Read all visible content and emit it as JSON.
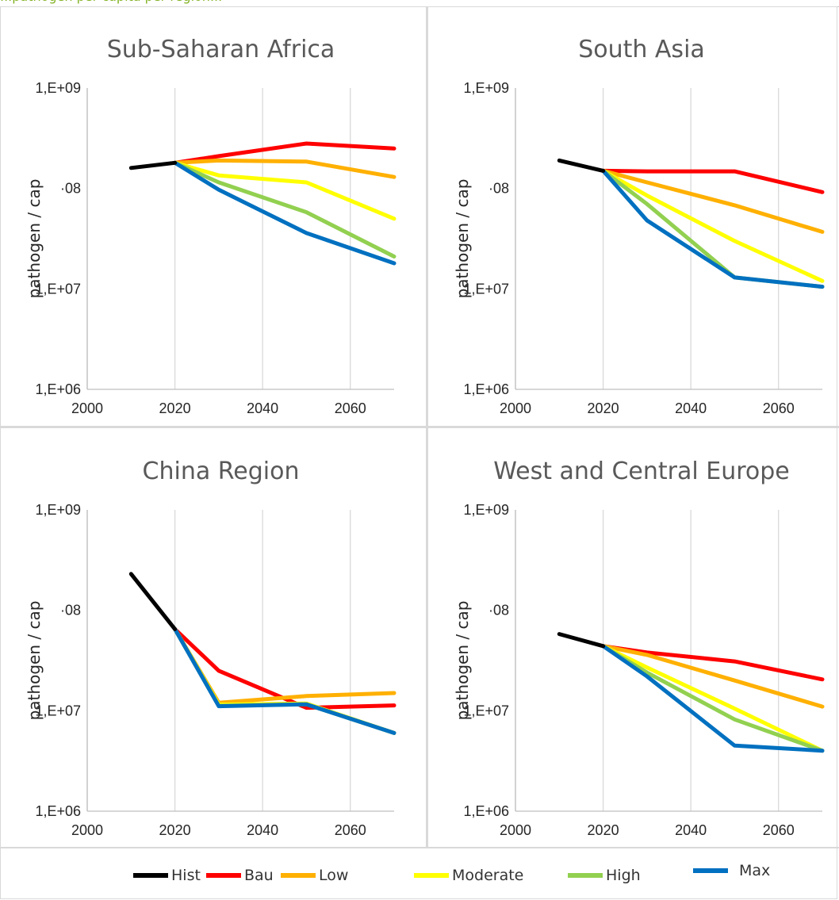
{
  "caption": "...pathogen per capita per region...",
  "legend": [
    {
      "name": "Hist",
      "color": "#000000"
    },
    {
      "name": "Bau",
      "color": "#ff0000"
    },
    {
      "name": "Low",
      "color": "#ffb000"
    },
    {
      "name": "Moderate",
      "color": "#ffff00"
    },
    {
      "name": "High",
      "color": "#92d050"
    },
    {
      "name": "Max",
      "color": "#0070c0"
    }
  ],
  "chart_data": [
    {
      "type": "line",
      "title": "Sub-Saharan Africa",
      "ylabel": "pathogen / cap",
      "yscale": "log",
      "ylim": [
        1000000,
        1000000000
      ],
      "yticks": [
        "1,E+06",
        "1,E+07",
        "·08",
        "1,E+09"
      ],
      "xlim": [
        2000,
        2070
      ],
      "xticks": [
        "2000",
        "2020",
        "2040",
        "2060"
      ],
      "grid": "vertical",
      "series": [
        {
          "name": "Hist",
          "color": "#000000",
          "x": [
            2010,
            2020
          ],
          "y": [
            160000000,
            180000000
          ]
        },
        {
          "name": "Bau",
          "color": "#ff0000",
          "x": [
            2020,
            2030,
            2050,
            2070
          ],
          "y": [
            180000000,
            210000000,
            280000000,
            250000000
          ]
        },
        {
          "name": "Low",
          "color": "#ffb000",
          "x": [
            2020,
            2030,
            2050,
            2070
          ],
          "y": [
            180000000,
            190000000,
            185000000,
            130000000
          ]
        },
        {
          "name": "Moderate",
          "color": "#ffff00",
          "x": [
            2020,
            2030,
            2050,
            2070
          ],
          "y": [
            180000000,
            135000000,
            115000000,
            50000000
          ]
        },
        {
          "name": "High",
          "color": "#92d050",
          "x": [
            2020,
            2030,
            2050,
            2070
          ],
          "y": [
            180000000,
            115000000,
            58000000,
            21000000
          ]
        },
        {
          "name": "Max",
          "color": "#0070c0",
          "x": [
            2020,
            2030,
            2050,
            2070
          ],
          "y": [
            180000000,
            97000000,
            36000000,
            18000000
          ]
        }
      ]
    },
    {
      "type": "line",
      "title": "South Asia",
      "ylabel": "pathogen / cap",
      "yscale": "log",
      "ylim": [
        1000000,
        1000000000
      ],
      "yticks": [
        "1,E+06",
        "1,E+07",
        "·08",
        "1,E+09"
      ],
      "xlim": [
        2000,
        2070
      ],
      "xticks": [
        "2000",
        "2020",
        "2040",
        "2060"
      ],
      "grid": "vertical",
      "series": [
        {
          "name": "Hist",
          "color": "#000000",
          "x": [
            2010,
            2020
          ],
          "y": [
            190000000,
            150000000
          ]
        },
        {
          "name": "Bau",
          "color": "#ff0000",
          "x": [
            2020,
            2030,
            2050,
            2070
          ],
          "y": [
            150000000,
            148000000,
            148000000,
            92000000
          ]
        },
        {
          "name": "Low",
          "color": "#ffb000",
          "x": [
            2020,
            2030,
            2050,
            2070
          ],
          "y": [
            150000000,
            115000000,
            68000000,
            37000000
          ]
        },
        {
          "name": "Moderate",
          "color": "#ffff00",
          "x": [
            2020,
            2030,
            2050,
            2070
          ],
          "y": [
            150000000,
            85000000,
            30000000,
            12000000
          ]
        },
        {
          "name": "High",
          "color": "#92d050",
          "x": [
            2020,
            2030,
            2050,
            2070
          ],
          "y": [
            150000000,
            70000000,
            13000000,
            10500000
          ]
        },
        {
          "name": "Max",
          "color": "#0070c0",
          "x": [
            2020,
            2030,
            2050,
            2070
          ],
          "y": [
            150000000,
            48000000,
            13000000,
            10500000
          ]
        }
      ]
    },
    {
      "type": "line",
      "title": "China Region",
      "ylabel": "pathogen / cap",
      "yscale": "log",
      "ylim": [
        1000000,
        1000000000
      ],
      "yticks": [
        "1,E+06",
        "1,E+07",
        "·08",
        "1,E+09"
      ],
      "xlim": [
        2000,
        2070
      ],
      "xticks": [
        "2000",
        "2020",
        "2040",
        "2060"
      ],
      "grid": "vertical",
      "series": [
        {
          "name": "Hist",
          "color": "#000000",
          "x": [
            2010,
            2020
          ],
          "y": [
            230000000,
            65000000
          ]
        },
        {
          "name": "Bau",
          "color": "#ff0000",
          "x": [
            2020,
            2030,
            2050,
            2070
          ],
          "y": [
            65000000,
            25000000,
            10700000,
            11300000
          ]
        },
        {
          "name": "Low",
          "color": "#ffb000",
          "x": [
            2020,
            2030,
            2050,
            2070
          ],
          "y": [
            65000000,
            12000000,
            14000000,
            15000000
          ]
        },
        {
          "name": "Moderate",
          "color": "#ffff00",
          "x": [
            2020,
            2030,
            2050,
            2070
          ],
          "y": [
            65000000,
            11500000,
            11800000,
            6000000
          ]
        },
        {
          "name": "High",
          "color": "#92d050",
          "x": [
            2020,
            2030,
            2050,
            2070
          ],
          "y": [
            65000000,
            11200000,
            11600000,
            6000000
          ]
        },
        {
          "name": "Max",
          "color": "#0070c0",
          "x": [
            2020,
            2030,
            2050,
            2070
          ],
          "y": [
            65000000,
            11100000,
            11600000,
            6000000
          ]
        }
      ]
    },
    {
      "type": "line",
      "title": "West and Central Europe",
      "ylabel": "pathogen / cap",
      "yscale": "log",
      "ylim": [
        1000000,
        1000000000
      ],
      "yticks": [
        "1,E+06",
        "1,E+07",
        "·08",
        "1,E+09"
      ],
      "xlim": [
        2000,
        2070
      ],
      "xticks": [
        "2000",
        "2020",
        "2040",
        "2060"
      ],
      "grid": "vertical",
      "series": [
        {
          "name": "Hist",
          "color": "#000000",
          "x": [
            2010,
            2020
          ],
          "y": [
            58000000,
            44000000
          ]
        },
        {
          "name": "Bau",
          "color": "#ff0000",
          "x": [
            2020,
            2030,
            2050,
            2070
          ],
          "y": [
            44000000,
            38000000,
            31000000,
            20500000
          ]
        },
        {
          "name": "Low",
          "color": "#ffb000",
          "x": [
            2020,
            2030,
            2050,
            2070
          ],
          "y": [
            44000000,
            36000000,
            20000000,
            11000000
          ]
        },
        {
          "name": "Moderate",
          "color": "#ffff00",
          "x": [
            2020,
            2030,
            2050,
            2070
          ],
          "y": [
            44000000,
            27000000,
            10500000,
            4000000
          ]
        },
        {
          "name": "High",
          "color": "#92d050",
          "x": [
            2020,
            2030,
            2050,
            2070
          ],
          "y": [
            44000000,
            24000000,
            8200000,
            4000000
          ]
        },
        {
          "name": "Max",
          "color": "#0070c0",
          "x": [
            2020,
            2030,
            2050,
            2070
          ],
          "y": [
            44000000,
            22000000,
            4500000,
            4000000
          ]
        }
      ]
    }
  ]
}
